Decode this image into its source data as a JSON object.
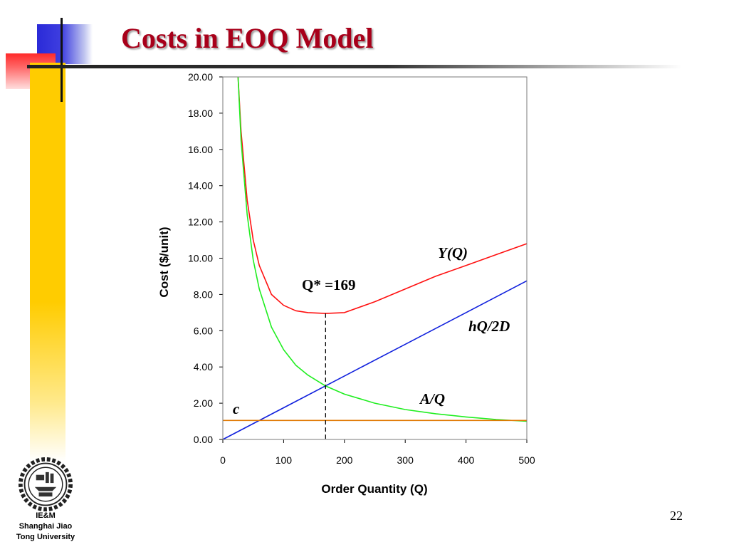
{
  "slide": {
    "title": "Costs in EOQ Model",
    "page_number": "22",
    "org_lines": [
      "IE&M",
      "Shanghai Jiao",
      "Tong University"
    ]
  },
  "chart_data": {
    "type": "line",
    "xlabel": "Order Quantity (Q)",
    "ylabel": "Cost ($/unit)",
    "xlim": [
      0,
      500
    ],
    "ylim": [
      0,
      20
    ],
    "x_ticks": [
      "0",
      "100",
      "200",
      "300",
      "400",
      "500"
    ],
    "y_ticks": [
      "0.00",
      "2.00",
      "4.00",
      "6.00",
      "8.00",
      "10.00",
      "12.00",
      "14.00",
      "16.00",
      "18.00",
      "20.00"
    ],
    "grid": false,
    "legend": "none",
    "series": [
      {
        "name": "Y(Q)",
        "color": "#ff1010",
        "x": [
          25,
          30,
          40,
          50,
          60,
          80,
          100,
          120,
          140,
          169,
          200,
          250,
          300,
          350,
          400,
          450,
          500
        ],
        "y": [
          20.0,
          17.0,
          13.2,
          11.0,
          9.6,
          8.0,
          7.4,
          7.1,
          7.0,
          6.95,
          7.0,
          7.6,
          8.3,
          9.0,
          9.6,
          10.2,
          10.8
        ]
      },
      {
        "name": "hQ/2D",
        "color": "#1020dd",
        "x": [
          0,
          100,
          200,
          300,
          400,
          500
        ],
        "y": [
          0.0,
          1.75,
          3.5,
          5.25,
          7.0,
          8.75
        ]
      },
      {
        "name": "A/Q",
        "color": "#20ee20",
        "x": [
          25,
          30,
          40,
          50,
          60,
          80,
          100,
          120,
          140,
          169,
          200,
          250,
          300,
          350,
          400,
          450,
          500
        ],
        "y": [
          20.0,
          16.5,
          12.4,
          9.9,
          8.3,
          6.2,
          4.95,
          4.1,
          3.55,
          2.95,
          2.5,
          2.0,
          1.65,
          1.42,
          1.24,
          1.1,
          1.0
        ]
      },
      {
        "name": "c",
        "color": "#e07800",
        "x": [
          0,
          500
        ],
        "y": [
          1.05,
          1.05
        ]
      }
    ],
    "optimum": {
      "label": "Q* =169",
      "x": 169,
      "y": 6.95
    }
  }
}
